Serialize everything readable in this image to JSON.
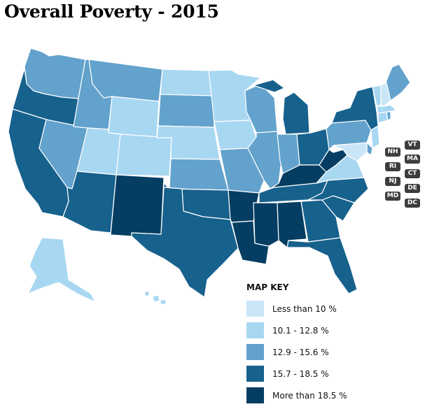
{
  "title": "Overall Poverty - 2015",
  "legend": {
    "title": "MAP KEY",
    "items": [
      {
        "label": "Less than 10 %",
        "color": "#cae6f6"
      },
      {
        "label": "10.1 - 12.8 %",
        "color": "#a8d7f2"
      },
      {
        "label": "12.9 - 15.6 %",
        "color": "#62a2cc"
      },
      {
        "label": "15.7 - 18.5 %",
        "color": "#17618d"
      },
      {
        "label": "More than 18.5 %",
        "color": "#053e62"
      }
    ]
  },
  "small_states": [
    {
      "abbr": "VT",
      "class": 1
    },
    {
      "abbr": "NH",
      "class": 0
    },
    {
      "abbr": "MA",
      "class": 1
    },
    {
      "abbr": "RI",
      "class": 2
    },
    {
      "abbr": "CT",
      "class": 1
    },
    {
      "abbr": "NJ",
      "class": 1
    },
    {
      "abbr": "DE",
      "class": 2
    },
    {
      "abbr": "MD",
      "class": 0
    },
    {
      "abbr": "DC",
      "class": 3
    }
  ],
  "states": [
    {
      "abbr": "WA",
      "class": 2
    },
    {
      "abbr": "OR",
      "class": 3
    },
    {
      "abbr": "CA",
      "class": 3
    },
    {
      "abbr": "NV",
      "class": 2
    },
    {
      "abbr": "ID",
      "class": 2
    },
    {
      "abbr": "MT",
      "class": 2
    },
    {
      "abbr": "WY",
      "class": 1
    },
    {
      "abbr": "UT",
      "class": 1
    },
    {
      "abbr": "CO",
      "class": 1
    },
    {
      "abbr": "AZ",
      "class": 3
    },
    {
      "abbr": "NM",
      "class": 4
    },
    {
      "abbr": "ND",
      "class": 1
    },
    {
      "abbr": "SD",
      "class": 2
    },
    {
      "abbr": "NE",
      "class": 1
    },
    {
      "abbr": "KS",
      "class": 2
    },
    {
      "abbr": "OK",
      "class": 3
    },
    {
      "abbr": "TX",
      "class": 3
    },
    {
      "abbr": "MN",
      "class": 1
    },
    {
      "abbr": "IA",
      "class": 1
    },
    {
      "abbr": "MO",
      "class": 2
    },
    {
      "abbr": "AR",
      "class": 4
    },
    {
      "abbr": "LA",
      "class": 4
    },
    {
      "abbr": "WI",
      "class": 2
    },
    {
      "abbr": "IL",
      "class": 2
    },
    {
      "abbr": "MI",
      "class": 3
    },
    {
      "abbr": "IN",
      "class": 2
    },
    {
      "abbr": "OH",
      "class": 3
    },
    {
      "abbr": "KY",
      "class": 4
    },
    {
      "abbr": "TN",
      "class": 3
    },
    {
      "abbr": "MS",
      "class": 4
    },
    {
      "abbr": "AL",
      "class": 4
    },
    {
      "abbr": "GA",
      "class": 3
    },
    {
      "abbr": "FL",
      "class": 3
    },
    {
      "abbr": "SC",
      "class": 3
    },
    {
      "abbr": "NC",
      "class": 3
    },
    {
      "abbr": "VA",
      "class": 1
    },
    {
      "abbr": "WV",
      "class": 4
    },
    {
      "abbr": "PA",
      "class": 2
    },
    {
      "abbr": "NY",
      "class": 3
    },
    {
      "abbr": "ME",
      "class": 2
    },
    {
      "abbr": "AK",
      "class": 1
    },
    {
      "abbr": "HI",
      "class": 1
    }
  ]
}
